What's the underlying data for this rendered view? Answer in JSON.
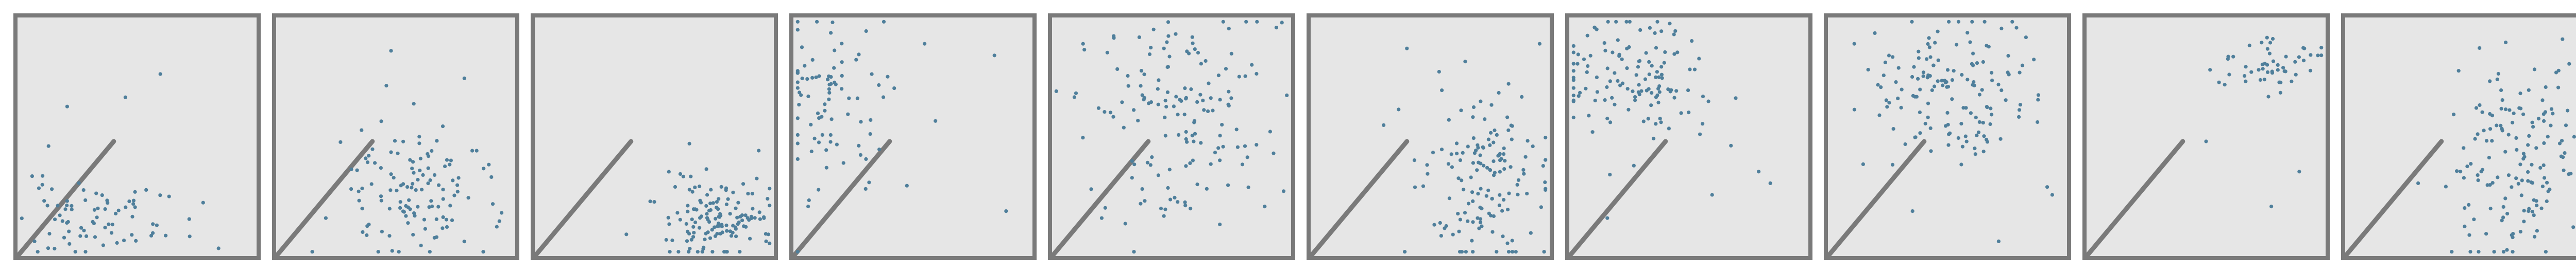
{
  "colors": {
    "panel_fill": "#e6e6e6",
    "panel_border": "#7a7a7a",
    "point": "#4f7f9b"
  },
  "chart_data": {
    "type": "scatter",
    "title": "",
    "xlabel": "",
    "ylabel": "",
    "xlim": [
      0,
      1
    ],
    "ylim": [
      0,
      1
    ],
    "grid": false,
    "panels": [
      {
        "id": 1,
        "cluster": {
          "x": 0.34,
          "y": 0.15,
          "sx": 0.19,
          "sy": 0.08,
          "n": 75,
          "seed": 11
        },
        "outliers": [
          [
            0.6,
            0.77
          ],
          [
            0.45,
            0.67
          ],
          [
            0.2,
            0.63
          ],
          [
            0.12,
            0.46
          ],
          [
            0.85,
            0.02
          ],
          [
            0.06,
            0.05
          ]
        ]
      },
      {
        "id": 2,
        "cluster": {
          "x": 0.58,
          "y": 0.26,
          "sx": 0.17,
          "sy": 0.15,
          "n": 120,
          "seed": 23
        },
        "outliers": [
          [
            0.48,
            0.87
          ],
          [
            0.46,
            0.72
          ],
          [
            0.9,
            0.38
          ],
          [
            0.2,
            0.15
          ]
        ]
      },
      {
        "id": 3,
        "cluster": {
          "x": 0.78,
          "y": 0.16,
          "sx": 0.11,
          "sy": 0.1,
          "n": 135,
          "seed": 37
        },
        "outliers": [
          [
            0.5,
            0.22
          ],
          [
            0.99,
            0.08
          ],
          [
            0.98,
            0.05
          ],
          [
            0.38,
            0.08
          ]
        ]
      },
      {
        "id": 4,
        "cluster": {
          "x": 0.17,
          "y": 0.66,
          "sx": 0.13,
          "sy": 0.2,
          "n": 85,
          "seed": 41
        },
        "outliers": [
          [
            0.85,
            0.85
          ],
          [
            0.55,
            0.9
          ],
          [
            0.05,
            0.2
          ],
          [
            0.9,
            0.18
          ]
        ]
      },
      {
        "id": 5,
        "cluster": {
          "x": 0.52,
          "y": 0.6,
          "sx": 0.2,
          "sy": 0.22,
          "n": 150,
          "seed": 53
        },
        "outliers": [
          [
            0.95,
            0.97
          ],
          [
            0.12,
            0.9
          ],
          [
            0.2,
            0.15
          ],
          [
            0.9,
            0.2
          ]
        ]
      },
      {
        "id": 6,
        "cluster": {
          "x": 0.74,
          "y": 0.34,
          "sx": 0.14,
          "sy": 0.19,
          "n": 145,
          "seed": 67
        },
        "outliers": [
          [
            0.55,
            0.7
          ],
          [
            0.4,
            0.88
          ],
          [
            0.3,
            0.55
          ],
          [
            0.97,
            0.9
          ]
        ]
      },
      {
        "id": 7,
        "cluster": {
          "x": 0.24,
          "y": 0.76,
          "sx": 0.2,
          "sy": 0.14,
          "n": 130,
          "seed": 71
        },
        "outliers": [
          [
            0.8,
            0.35
          ],
          [
            0.6,
            0.25
          ],
          [
            0.15,
            0.15
          ],
          [
            0.85,
            0.3
          ]
        ]
      },
      {
        "id": 8,
        "cluster": {
          "x": 0.5,
          "y": 0.7,
          "sx": 0.19,
          "sy": 0.17,
          "n": 145,
          "seed": 83
        },
        "outliers": [
          [
            0.95,
            0.25
          ],
          [
            0.1,
            0.9
          ],
          [
            0.35,
            0.18
          ],
          [
            0.72,
            0.05
          ]
        ]
      },
      {
        "id": 9,
        "cluster": {
          "x": 0.76,
          "y": 0.81,
          "sx": 0.12,
          "sy": 0.06,
          "n": 50,
          "seed": 97
        },
        "outliers": [
          [
            0.5,
            0.48
          ],
          [
            0.9,
            0.35
          ],
          [
            0.78,
            0.2
          ],
          [
            0.98,
            0.85
          ]
        ]
      },
      {
        "id": 10,
        "cluster": {
          "x": 0.72,
          "y": 0.4,
          "sx": 0.13,
          "sy": 0.22,
          "n": 145,
          "seed": 101
        },
        "outliers": [
          [
            0.3,
            0.3
          ],
          [
            0.92,
            0.92
          ],
          [
            0.8,
            0.07
          ],
          [
            0.97,
            0.5
          ]
        ]
      }
    ]
  }
}
